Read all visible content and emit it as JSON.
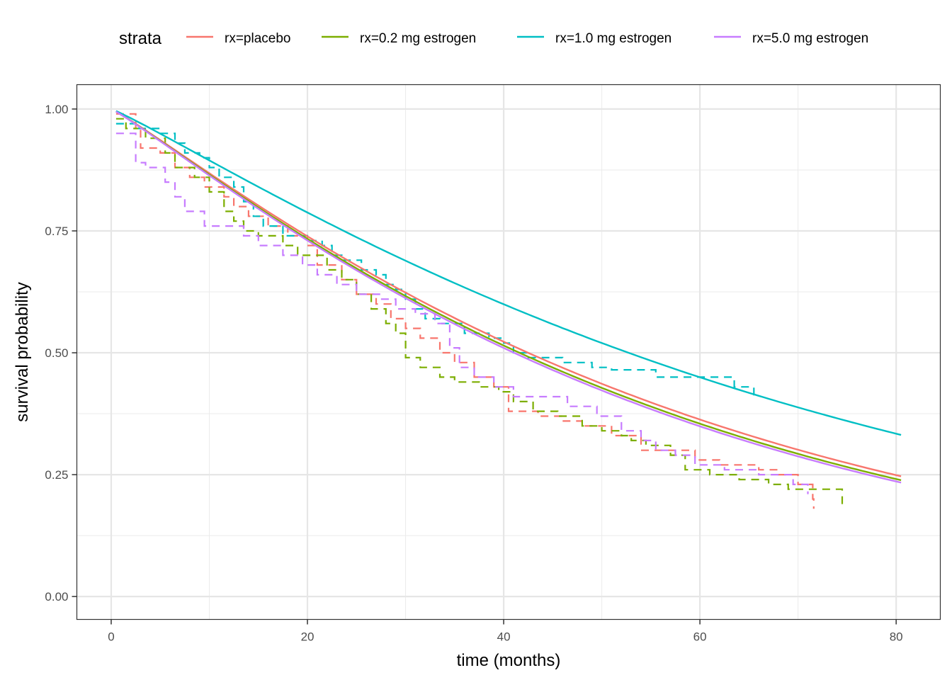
{
  "chart_data": {
    "type": "line",
    "title": "",
    "xlabel": "time (months)",
    "ylabel": "survival probability",
    "xlim": [
      -3.5,
      84.5
    ],
    "ylim": [
      -0.047,
      1.05
    ],
    "x_ticks": [
      0,
      20,
      40,
      60,
      80
    ],
    "x_tick_labels": [
      "0",
      "20",
      "40",
      "60",
      "80"
    ],
    "x_minor_ticks": [
      10,
      30,
      50,
      70
    ],
    "y_ticks": [
      0,
      0.25,
      0.5,
      0.75,
      1.0
    ],
    "y_tick_labels": [
      "0.00",
      "0.25",
      "0.50",
      "0.75",
      "1.00"
    ],
    "y_minor_ticks": [
      0.125,
      0.375,
      0.625,
      0.875
    ],
    "grid": true,
    "legend": {
      "title": "strata",
      "position": "top",
      "entries": [
        "rx=placebo",
        "rx=0.2 mg estrogen",
        "rx=1.0 mg estrogen",
        "rx=5.0 mg estrogen"
      ]
    },
    "series": [
      {
        "name": "rx=placebo",
        "color": "#F8766D",
        "fitted": {
          "t_start": 0.5,
          "t_end": 80.5,
          "S_at_80": 0.249,
          "shape": 1.1
        },
        "km_steps": [
          [
            0.5,
            0.99
          ],
          [
            2.5,
            0.96
          ],
          [
            3.0,
            0.92
          ],
          [
            5.0,
            0.91
          ],
          [
            6.5,
            0.88
          ],
          [
            8.0,
            0.86
          ],
          [
            9.5,
            0.84
          ],
          [
            11.5,
            0.82
          ],
          [
            12.5,
            0.8
          ],
          [
            14.0,
            0.78
          ],
          [
            16.0,
            0.76
          ],
          [
            18.0,
            0.74
          ],
          [
            20.0,
            0.72
          ],
          [
            21.0,
            0.68
          ],
          [
            23.5,
            0.65
          ],
          [
            25.0,
            0.62
          ],
          [
            27.0,
            0.6
          ],
          [
            28.5,
            0.57
          ],
          [
            30.0,
            0.55
          ],
          [
            31.5,
            0.53
          ],
          [
            33.5,
            0.5
          ],
          [
            35.0,
            0.48
          ],
          [
            37.0,
            0.45
          ],
          [
            39.0,
            0.43
          ],
          [
            40.5,
            0.38
          ],
          [
            42.0,
            0.38
          ],
          [
            43.5,
            0.37
          ],
          [
            46.0,
            0.36
          ],
          [
            48.0,
            0.35
          ],
          [
            51.0,
            0.33
          ],
          [
            54.0,
            0.3
          ],
          [
            57.0,
            0.3
          ],
          [
            59.5,
            0.28
          ],
          [
            62.0,
            0.27
          ],
          [
            66.0,
            0.26
          ],
          [
            68.0,
            0.25
          ],
          [
            70.0,
            0.23
          ],
          [
            71.5,
            0.2
          ],
          [
            71.6,
            0.18
          ]
        ]
      },
      {
        "name": "rx=0.2 mg estrogen",
        "color": "#7CAE00",
        "fitted": {
          "t_start": 0.5,
          "t_end": 80.5,
          "S_at_80": 0.241,
          "shape": 1.1
        },
        "km_steps": [
          [
            0.5,
            0.98
          ],
          [
            1.5,
            0.96
          ],
          [
            3.5,
            0.94
          ],
          [
            5.5,
            0.91
          ],
          [
            6.5,
            0.88
          ],
          [
            8.5,
            0.86
          ],
          [
            10.0,
            0.83
          ],
          [
            11.5,
            0.79
          ],
          [
            12.5,
            0.77
          ],
          [
            13.5,
            0.75
          ],
          [
            15.0,
            0.74
          ],
          [
            17.5,
            0.72
          ],
          [
            19.0,
            0.7
          ],
          [
            22.0,
            0.67
          ],
          [
            23.5,
            0.65
          ],
          [
            25.0,
            0.62
          ],
          [
            26.5,
            0.59
          ],
          [
            28.0,
            0.56
          ],
          [
            29.0,
            0.54
          ],
          [
            30.0,
            0.49
          ],
          [
            31.5,
            0.47
          ],
          [
            33.5,
            0.45
          ],
          [
            35.0,
            0.44
          ],
          [
            37.5,
            0.43
          ],
          [
            39.5,
            0.42
          ],
          [
            41.0,
            0.4
          ],
          [
            43.0,
            0.38
          ],
          [
            45.5,
            0.37
          ],
          [
            48.0,
            0.35
          ],
          [
            50.0,
            0.34
          ],
          [
            52.0,
            0.33
          ],
          [
            53.0,
            0.32
          ],
          [
            54.5,
            0.31
          ],
          [
            57.0,
            0.29
          ],
          [
            58.5,
            0.26
          ],
          [
            61.0,
            0.25
          ],
          [
            64.0,
            0.24
          ],
          [
            67.0,
            0.23
          ],
          [
            69.0,
            0.22
          ],
          [
            74.5,
            0.18
          ]
        ]
      },
      {
        "name": "rx=1.0 mg estrogen",
        "color": "#00BFC4",
        "fitted": {
          "t_start": 0.5,
          "t_end": 80.5,
          "S_at_80": 0.334,
          "shape": 1.1
        },
        "km_steps": [
          [
            0.5,
            0.97
          ],
          [
            2.5,
            0.96
          ],
          [
            5.0,
            0.95
          ],
          [
            6.5,
            0.93
          ],
          [
            7.5,
            0.91
          ],
          [
            9.0,
            0.9
          ],
          [
            10.0,
            0.88
          ],
          [
            11.0,
            0.86
          ],
          [
            12.5,
            0.84
          ],
          [
            13.5,
            0.81
          ],
          [
            14.5,
            0.78
          ],
          [
            15.5,
            0.76
          ],
          [
            17.5,
            0.74
          ],
          [
            20.0,
            0.73
          ],
          [
            21.5,
            0.72
          ],
          [
            22.5,
            0.7
          ],
          [
            23.5,
            0.69
          ],
          [
            25.5,
            0.67
          ],
          [
            27.0,
            0.66
          ],
          [
            28.0,
            0.64
          ],
          [
            29.0,
            0.63
          ],
          [
            30.0,
            0.61
          ],
          [
            31.0,
            0.59
          ],
          [
            32.0,
            0.57
          ],
          [
            33.5,
            0.56
          ],
          [
            36.0,
            0.54
          ],
          [
            38.5,
            0.53
          ],
          [
            40.0,
            0.52
          ],
          [
            41.0,
            0.5
          ],
          [
            42.5,
            0.49
          ],
          [
            46.0,
            0.48
          ],
          [
            49.0,
            0.47
          ],
          [
            51.0,
            0.465
          ],
          [
            55.5,
            0.45
          ],
          [
            63.5,
            0.43
          ],
          [
            65.5,
            0.41
          ]
        ]
      },
      {
        "name": "rx=5.0 mg estrogen",
        "color": "#C77CFF",
        "fitted": {
          "t_start": 0.5,
          "t_end": 80.5,
          "S_at_80": 0.236,
          "shape": 1.1
        },
        "km_steps": [
          [
            0.5,
            0.95
          ],
          [
            2.5,
            0.89
          ],
          [
            3.5,
            0.88
          ],
          [
            5.5,
            0.85
          ],
          [
            6.5,
            0.82
          ],
          [
            7.5,
            0.79
          ],
          [
            9.5,
            0.76
          ],
          [
            12.0,
            0.76
          ],
          [
            13.5,
            0.74
          ],
          [
            15.0,
            0.72
          ],
          [
            17.5,
            0.7
          ],
          [
            19.5,
            0.68
          ],
          [
            21.0,
            0.66
          ],
          [
            23.0,
            0.64
          ],
          [
            25.0,
            0.62
          ],
          [
            27.5,
            0.61
          ],
          [
            29.0,
            0.59
          ],
          [
            31.0,
            0.58
          ],
          [
            33.0,
            0.56
          ],
          [
            34.5,
            0.51
          ],
          [
            35.5,
            0.47
          ],
          [
            37.0,
            0.45
          ],
          [
            39.0,
            0.43
          ],
          [
            41.0,
            0.41
          ],
          [
            44.0,
            0.41
          ],
          [
            46.5,
            0.39
          ],
          [
            49.5,
            0.37
          ],
          [
            52.0,
            0.34
          ],
          [
            54.0,
            0.32
          ],
          [
            55.5,
            0.3
          ],
          [
            57.5,
            0.29
          ],
          [
            59.5,
            0.27
          ],
          [
            62.5,
            0.26
          ],
          [
            66.0,
            0.25
          ],
          [
            69.5,
            0.23
          ],
          [
            71.0,
            0.21
          ]
        ]
      }
    ]
  }
}
